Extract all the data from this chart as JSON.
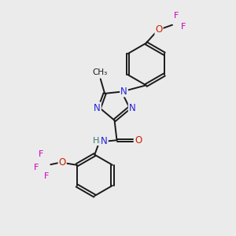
{
  "bg_color": "#ebebeb",
  "bond_color": "#1a1a1a",
  "n_color": "#2222dd",
  "o_color": "#cc2200",
  "f_color": "#cc00bb",
  "h_color": "#337777",
  "figsize": [
    3.0,
    3.0
  ],
  "dpi": 100,
  "xlim": [
    0,
    10
  ],
  "ylim": [
    0,
    10
  ]
}
